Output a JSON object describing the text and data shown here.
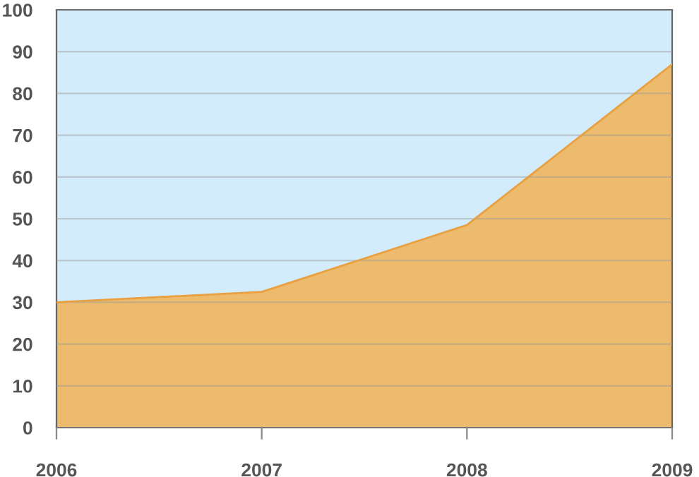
{
  "chart_data": {
    "type": "area",
    "categories": [
      "2006",
      "2007",
      "2008",
      "2009"
    ],
    "series": [
      {
        "color": "#eeb865",
        "values": [
          30,
          32.5,
          48.5,
          87
        ]
      }
    ],
    "ylim": [
      0,
      100
    ],
    "yticks": [
      0,
      10,
      20,
      30,
      40,
      50,
      60,
      70,
      80,
      90,
      100
    ],
    "grid": "y"
  }
}
